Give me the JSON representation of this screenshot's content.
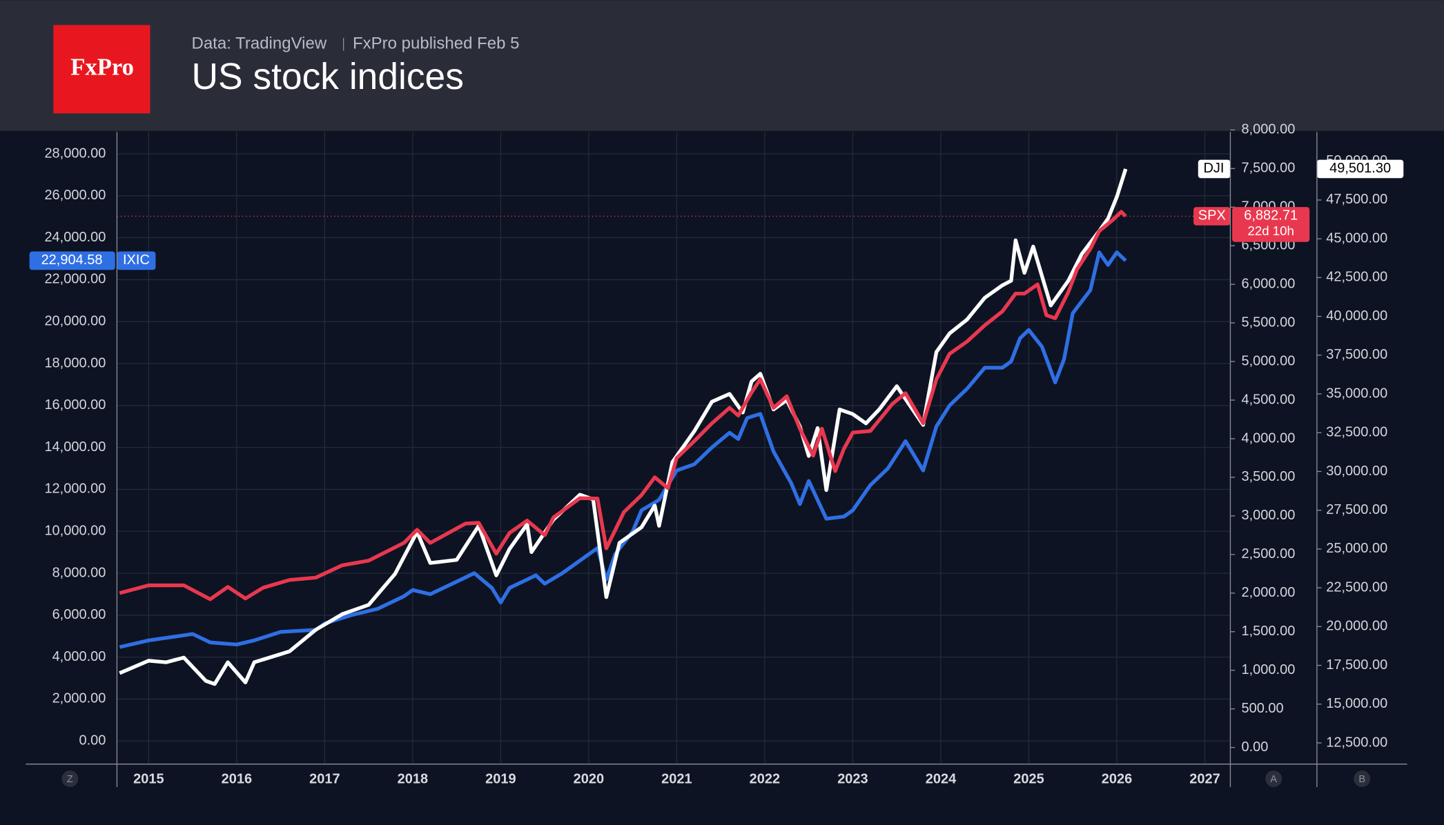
{
  "chart_data": {
    "type": "line",
    "logo": "FxPro",
    "source": "Data: TradingView",
    "published": "FxPro published Feb 5",
    "title": "US stock indices",
    "countdown": "22d 10h",
    "axis_names": [
      "Z",
      "A",
      "B"
    ],
    "xlim": [
      2014.64,
      2027.29
    ],
    "xticks": [
      2015,
      2016,
      2017,
      2018,
      2019,
      2020,
      2021,
      2022,
      2023,
      2024,
      2025,
      2026,
      2027
    ],
    "ylim": [
      -1100,
      29050
    ],
    "yticks": [
      {
        "value": 0,
        "label": "0.00"
      },
      {
        "value": 2000,
        "label": "2,000.00"
      },
      {
        "value": 4000,
        "label": "4,000.00"
      },
      {
        "value": 6000,
        "label": "6,000.00"
      },
      {
        "value": 8000,
        "label": "8,000.00"
      },
      {
        "value": 10000,
        "label": "10,000.00"
      },
      {
        "value": 12000,
        "label": "12,000.00"
      },
      {
        "value": 14000,
        "label": "14,000.00"
      },
      {
        "value": 16000,
        "label": "16,000.00"
      },
      {
        "value": 18000,
        "label": "18,000.00"
      },
      {
        "value": 20000,
        "label": "20,000.00"
      },
      {
        "value": 22000,
        "label": "22,000.00"
      },
      {
        "value": 24000,
        "label": "24,000.00"
      },
      {
        "value": 26000,
        "label": "26,000.00"
      },
      {
        "value": 28000,
        "label": "28,000.00"
      }
    ],
    "y2lim": [
      -215,
      7976
    ],
    "y2ticks": [
      {
        "value": 0,
        "label": "0.00"
      },
      {
        "value": 500,
        "label": "500.00"
      },
      {
        "value": 1000,
        "label": "1,000.00"
      },
      {
        "value": 1500,
        "label": "1,500.00"
      },
      {
        "value": 2000,
        "label": "2,000.00"
      },
      {
        "value": 2500,
        "label": "2,500.00"
      },
      {
        "value": 3000,
        "label": "3,000.00"
      },
      {
        "value": 3500,
        "label": "3,500.00"
      },
      {
        "value": 4000,
        "label": "4,000.00"
      },
      {
        "value": 4500,
        "label": "4,500.00"
      },
      {
        "value": 5000,
        "label": "5,000.00"
      },
      {
        "value": 5500,
        "label": "5,500.00"
      },
      {
        "value": 6000,
        "label": "6,000.00"
      },
      {
        "value": 6500,
        "label": "6,500.00"
      },
      {
        "value": 7000,
        "label": "7,000.00"
      },
      {
        "value": 7500,
        "label": "7,500.00"
      },
      {
        "value": 8000,
        "label": "8,000.00"
      }
    ],
    "y3lim": [
      11136,
      51898
    ],
    "y3ticks": [
      {
        "value": 12500,
        "label": "12,500.00"
      },
      {
        "value": 15000,
        "label": "15,000.00"
      },
      {
        "value": 17500,
        "label": "17,500.00"
      },
      {
        "value": 20000,
        "label": "20,000.00"
      },
      {
        "value": 22500,
        "label": "22,500.00"
      },
      {
        "value": 25000,
        "label": "25,000.00"
      },
      {
        "value": 27500,
        "label": "27,500.00"
      },
      {
        "value": 30000,
        "label": "30,000.00"
      },
      {
        "value": 32500,
        "label": "32,500.00"
      },
      {
        "value": 35000,
        "label": "35,000.00"
      },
      {
        "value": 37500,
        "label": "37,500.00"
      },
      {
        "value": 40000,
        "label": "40,000.00"
      },
      {
        "value": 42500,
        "label": "42,500.00"
      },
      {
        "value": 45000,
        "label": "45,000.00"
      },
      {
        "value": 47500,
        "label": "47,500.00"
      },
      {
        "value": 50000,
        "label": "50,000.00"
      }
    ],
    "grid": true,
    "series": [
      {
        "name": "IXIC",
        "color": "#2f6fe4",
        "axis": "y",
        "last_label": "22,904.58",
        "x": [
          2014.67,
          2015.0,
          2015.5,
          2015.7,
          2016.0,
          2016.2,
          2016.5,
          2016.9,
          2017.0,
          2017.3,
          2017.6,
          2017.9,
          2018.0,
          2018.2,
          2018.5,
          2018.7,
          2018.9,
          2019.0,
          2019.1,
          2019.4,
          2019.5,
          2019.7,
          2020.0,
          2020.1,
          2020.2,
          2020.3,
          2020.5,
          2020.6,
          2020.8,
          2021.0,
          2021.2,
          2021.4,
          2021.6,
          2021.7,
          2021.8,
          2021.95,
          2022.1,
          2022.3,
          2022.4,
          2022.5,
          2022.7,
          2022.9,
          2023.0,
          2023.2,
          2023.4,
          2023.6,
          2023.8,
          2023.95,
          2024.1,
          2024.3,
          2024.5,
          2024.7,
          2024.8,
          2024.9,
          2025.0,
          2025.15,
          2025.3,
          2025.4,
          2025.5,
          2025.7,
          2025.8,
          2025.9,
          2026.0,
          2026.1
        ],
        "values": [
          4480,
          4800,
          5100,
          4700,
          4600,
          4800,
          5200,
          5300,
          5600,
          6000,
          6300,
          6900,
          7200,
          7000,
          7600,
          8000,
          7300,
          6600,
          7300,
          7900,
          7500,
          8000,
          8900,
          9200,
          7700,
          8900,
          10000,
          11000,
          11500,
          12900,
          13200,
          14000,
          14700,
          14400,
          15400,
          15600,
          13800,
          12300,
          11300,
          12400,
          10600,
          10700,
          11000,
          12200,
          13000,
          14300,
          12900,
          15000,
          16000,
          16800,
          17800,
          17800,
          18100,
          19200,
          19600,
          18800,
          17100,
          18200,
          20400,
          21500,
          23300,
          22700,
          23300,
          22904.58
        ]
      },
      {
        "name": "DJI",
        "color": "#ffffff",
        "axis": "y3",
        "last_label": "49,501.30",
        "x": [
          2014.67,
          2015.0,
          2015.2,
          2015.4,
          2015.65,
          2015.75,
          2015.9,
          2016.1,
          2016.2,
          2016.6,
          2016.9,
          2017.2,
          2017.5,
          2017.8,
          2018.05,
          2018.2,
          2018.5,
          2018.75,
          2018.95,
          2019.1,
          2019.3,
          2019.35,
          2019.6,
          2019.9,
          2020.05,
          2020.2,
          2020.35,
          2020.6,
          2020.75,
          2020.8,
          2020.95,
          2021.2,
          2021.4,
          2021.6,
          2021.75,
          2021.85,
          2021.95,
          2022.1,
          2022.25,
          2022.4,
          2022.5,
          2022.6,
          2022.7,
          2022.85,
          2023.0,
          2023.15,
          2023.3,
          2023.5,
          2023.8,
          2023.95,
          2024.1,
          2024.3,
          2024.5,
          2024.7,
          2024.8,
          2024.85,
          2024.95,
          2025.05,
          2025.25,
          2025.45,
          2025.6,
          2025.8,
          2025.9,
          2026.0,
          2026.1
        ],
        "values": [
          17000,
          17800,
          17700,
          18000,
          16500,
          16300,
          17700,
          16400,
          17700,
          18400,
          19800,
          20800,
          21400,
          23400,
          26100,
          24100,
          24300,
          26500,
          23300,
          25000,
          26600,
          24800,
          26900,
          28500,
          28200,
          21900,
          25400,
          26400,
          27800,
          26500,
          30600,
          32600,
          34500,
          35000,
          33800,
          35800,
          36300,
          34000,
          34600,
          32900,
          31000,
          32800,
          28800,
          34000,
          33700,
          33100,
          34000,
          35500,
          33000,
          37700,
          38900,
          39800,
          41200,
          42000,
          42300,
          44900,
          42800,
          44500,
          40700,
          42300,
          44000,
          45500,
          46300,
          47700,
          49501.3
        ]
      },
      {
        "name": "SPX",
        "color": "#e8384f",
        "axis": "y2",
        "last_label": "6,882.71",
        "x": [
          2014.67,
          2015.0,
          2015.4,
          2015.7,
          2015.9,
          2016.1,
          2016.3,
          2016.6,
          2016.9,
          2017.2,
          2017.5,
          2017.9,
          2018.05,
          2018.2,
          2018.6,
          2018.75,
          2018.95,
          2019.1,
          2019.3,
          2019.5,
          2019.6,
          2019.9,
          2020.1,
          2020.2,
          2020.4,
          2020.6,
          2020.75,
          2020.9,
          2021.0,
          2021.2,
          2021.4,
          2021.6,
          2021.7,
          2021.85,
          2021.95,
          2022.1,
          2022.25,
          2022.4,
          2022.55,
          2022.65,
          2022.8,
          2022.9,
          2023.0,
          2023.2,
          2023.45,
          2023.6,
          2023.8,
          2023.95,
          2024.1,
          2024.3,
          2024.5,
          2024.7,
          2024.85,
          2024.95,
          2025.1,
          2025.2,
          2025.3,
          2025.45,
          2025.55,
          2025.7,
          2025.8,
          2025.95,
          2026.05,
          2026.1
        ],
        "values": [
          2000,
          2100,
          2100,
          1920,
          2080,
          1930,
          2070,
          2170,
          2200,
          2360,
          2420,
          2650,
          2820,
          2650,
          2900,
          2910,
          2510,
          2780,
          2940,
          2750,
          2980,
          3230,
          3225,
          2580,
          3050,
          3270,
          3500,
          3360,
          3750,
          3970,
          4200,
          4400,
          4300,
          4600,
          4770,
          4400,
          4550,
          4130,
          3780,
          4130,
          3580,
          3870,
          4080,
          4100,
          4450,
          4590,
          4200,
          4770,
          5100,
          5260,
          5470,
          5650,
          5880,
          5880,
          6000,
          5600,
          5560,
          5900,
          6200,
          6460,
          6690,
          6830,
          6940,
          6882.71
        ]
      }
    ]
  }
}
